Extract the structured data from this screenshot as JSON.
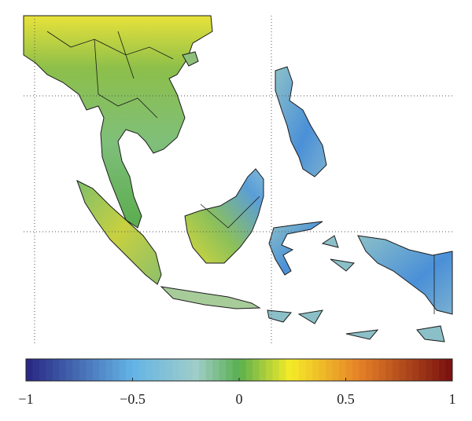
{
  "colorbar": {
    "range": [
      -1,
      1
    ],
    "ticks": [
      {
        "value": -1,
        "label": "−1"
      },
      {
        "value": -0.5,
        "label": "−0.5"
      },
      0,
      0.5,
      1
    ]
  }
}
